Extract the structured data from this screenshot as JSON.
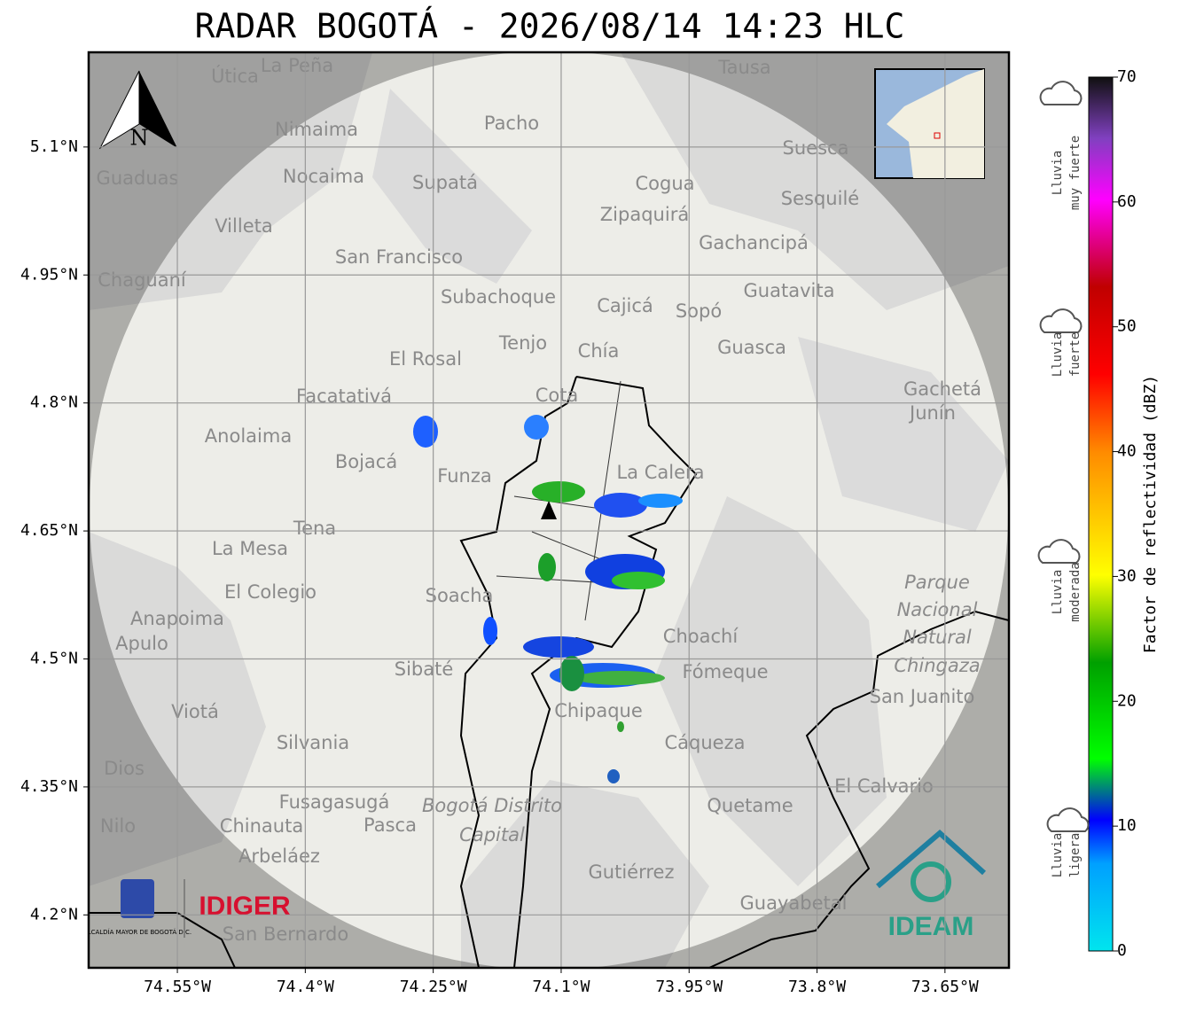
{
  "map": {
    "title": "RADAR BOGOTÁ - 2026/08/14 14:23 HLC",
    "compass": "N",
    "xlim": [
      -74.654,
      -73.575
    ],
    "ylim": [
      4.138,
      5.211
    ],
    "xticks": [
      {
        "value": -74.55,
        "label": "74.55°W"
      },
      {
        "value": -74.4,
        "label": "74.4°W"
      },
      {
        "value": -74.25,
        "label": "74.25°W"
      },
      {
        "value": -74.1,
        "label": "74.1°W"
      },
      {
        "value": -73.95,
        "label": "73.95°W"
      },
      {
        "value": -73.8,
        "label": "73.8°W"
      },
      {
        "value": -73.65,
        "label": "73.65°W"
      }
    ],
    "yticks": [
      {
        "value": 5.1,
        "label": "5.1°N"
      },
      {
        "value": 4.95,
        "label": "4.95°N"
      },
      {
        "value": 4.8,
        "label": "4.8°N"
      },
      {
        "value": 4.65,
        "label": "4.65°N"
      },
      {
        "value": 4.5,
        "label": "4.5°N"
      },
      {
        "value": 4.35,
        "label": "4.35°N"
      },
      {
        "value": 4.2,
        "label": "4.2°N"
      }
    ],
    "places": [
      "La Peña",
      "Útica",
      "Tausa",
      "Pacho",
      "Nimaima",
      "Suesca",
      "Guaduas",
      "Nocaima",
      "Supatá",
      "Cogua",
      "Sesquilé",
      "Zipaquirá",
      "Villeta",
      "Gachancipá",
      "San Francisco",
      "Chaguaní",
      "Guatavita",
      "Subachoque",
      "Cajicá",
      "Sopó",
      "Tenjo",
      "Chía",
      "Guasca",
      "El Rosal",
      "Gachetá",
      "Facatativá",
      "Cota",
      "Junín",
      "Anolaima",
      "Bojacá",
      "Funza",
      "La Calera",
      "Tena",
      "La Mesa",
      "El Colegio",
      "Soacha",
      "Anapoima",
      "Apulo",
      "Choachí",
      "Sibaté",
      "Fómeque",
      "San Juanito",
      "Viotá",
      "Chipaque",
      "Silvania",
      "Cáqueza",
      "El Calvario",
      "Fusagasugá",
      "Quetame",
      "Chinauta",
      "Pasca",
      "Arbeláez",
      "Gutiérrez",
      "Guayabetal",
      "San Bernardo",
      "Nilo",
      "Dios",
      "Parque",
      "Nacional",
      "Natural",
      "Chingaza",
      "Bogotá Distrito",
      "Capital"
    ],
    "logos": {
      "alcaldia": "ALCALDÍA MAYOR DE BOGOTÁ D.C.",
      "idiger": "IDIGER",
      "ideam": "IDEAM"
    },
    "colorbar": {
      "label": "Factor de reflectividad (dBZ)",
      "lim": [
        0,
        70
      ],
      "ticks": [
        0,
        10,
        20,
        30,
        40,
        50,
        60,
        70
      ]
    },
    "intensity": [
      [
        "Lluvia",
        "muy fuerte"
      ],
      [
        "Lluvia",
        "fuerte"
      ],
      [
        "Lluvia",
        "moderada"
      ],
      [
        "Lluvia",
        "ligera"
      ]
    ]
  }
}
